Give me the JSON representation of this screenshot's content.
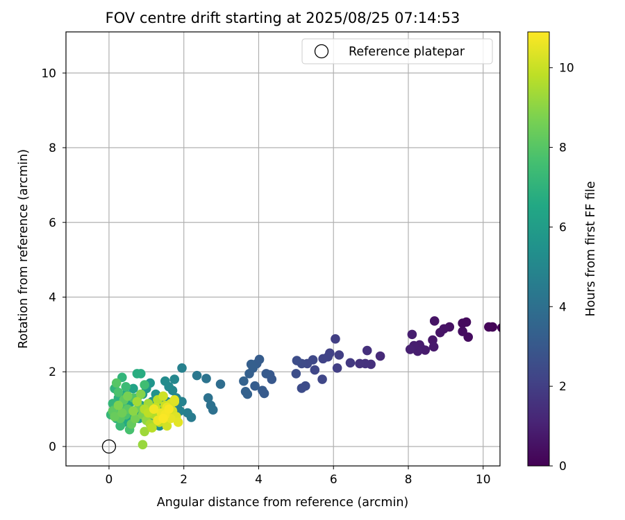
{
  "chart_data": {
    "type": "scatter",
    "title": "FOV centre drift starting at 2025/08/25 07:14:53",
    "xlabel": "Angular distance from reference (arcmin)",
    "ylabel": "Rotation from reference (arcmin)",
    "xlim": [
      -1.15,
      10.45
    ],
    "ylim": [
      -0.52,
      11.1
    ],
    "xticks": [
      0,
      2,
      4,
      6,
      8,
      10
    ],
    "yticks": [
      0,
      2,
      4,
      6,
      8,
      10
    ],
    "grid": true,
    "legend": {
      "position": "top-right",
      "entries": [
        "Reference platepar"
      ]
    },
    "reference_point": {
      "name": "Reference platepar",
      "x": 0,
      "y": 0
    },
    "colorbar": {
      "label": "Hours from first FF file",
      "colormap": "viridis",
      "range": [
        0,
        10.9
      ],
      "ticks": [
        0,
        2,
        4,
        6,
        8,
        10
      ]
    },
    "points": [
      [
        10.5,
        3.18,
        0.05
      ],
      [
        10.25,
        3.2,
        0.1
      ],
      [
        10.15,
        3.2,
        0.15
      ],
      [
        9.6,
        2.93,
        0.35
      ],
      [
        9.55,
        3.33,
        0.3
      ],
      [
        9.45,
        3.3,
        0.3
      ],
      [
        9.45,
        3.08,
        0.4
      ],
      [
        9.1,
        3.2,
        0.5
      ],
      [
        8.95,
        3.15,
        0.55
      ],
      [
        8.85,
        3.05,
        0.6
      ],
      [
        8.7,
        3.36,
        0.55
      ],
      [
        8.65,
        2.85,
        0.7
      ],
      [
        8.68,
        2.67,
        0.75
      ],
      [
        8.45,
        2.58,
        0.8
      ],
      [
        8.35,
        2.62,
        0.85
      ],
      [
        8.3,
        2.72,
        0.85
      ],
      [
        8.25,
        2.55,
        0.9
      ],
      [
        8.15,
        2.7,
        0.9
      ],
      [
        8.05,
        2.6,
        0.95
      ],
      [
        8.1,
        3.0,
        0.9
      ],
      [
        7.25,
        2.42,
        1.3
      ],
      [
        7.0,
        2.2,
        1.5
      ],
      [
        6.9,
        2.57,
        1.5
      ],
      [
        6.85,
        2.22,
        1.55
      ],
      [
        6.7,
        2.22,
        1.6
      ],
      [
        6.45,
        2.24,
        1.8
      ],
      [
        6.15,
        2.45,
        2.0
      ],
      [
        6.1,
        2.1,
        2.0
      ],
      [
        6.05,
        2.88,
        2.0
      ],
      [
        5.9,
        2.5,
        2.1
      ],
      [
        5.85,
        2.4,
        2.15
      ],
      [
        5.72,
        2.35,
        2.2
      ],
      [
        5.7,
        1.8,
        2.3
      ],
      [
        5.5,
        2.05,
        2.3
      ],
      [
        5.45,
        2.32,
        2.35
      ],
      [
        5.3,
        2.22,
        2.4
      ],
      [
        5.15,
        2.22,
        2.45
      ],
      [
        5.25,
        1.62,
        2.5
      ],
      [
        5.15,
        1.56,
        2.5
      ],
      [
        5.02,
        2.3,
        2.55
      ],
      [
        5.0,
        1.95,
        2.6
      ],
      [
        4.35,
        1.8,
        3.0
      ],
      [
        4.3,
        1.92,
        3.0
      ],
      [
        4.2,
        1.95,
        3.05
      ],
      [
        4.15,
        1.42,
        3.1
      ],
      [
        4.1,
        1.5,
        3.1
      ],
      [
        4.02,
        2.33,
        3.15
      ],
      [
        3.95,
        2.22,
        3.2
      ],
      [
        3.9,
        1.62,
        3.2
      ],
      [
        3.85,
        2.1,
        3.25
      ],
      [
        3.8,
        2.2,
        3.25
      ],
      [
        3.75,
        1.95,
        3.3
      ],
      [
        3.7,
        1.4,
        3.35
      ],
      [
        3.65,
        1.47,
        3.35
      ],
      [
        3.6,
        1.75,
        3.4
      ],
      [
        2.98,
        1.67,
        3.9
      ],
      [
        2.78,
        0.98,
        4.0
      ],
      [
        2.72,
        1.1,
        4.05
      ],
      [
        2.65,
        1.3,
        4.1
      ],
      [
        2.6,
        1.82,
        4.15
      ],
      [
        2.35,
        1.9,
        4.3
      ],
      [
        2.2,
        0.78,
        4.5
      ],
      [
        2.1,
        0.9,
        4.6
      ],
      [
        1.95,
        2.1,
        4.7
      ],
      [
        1.95,
        1.2,
        4.75
      ],
      [
        1.9,
        0.95,
        4.8
      ],
      [
        1.85,
        1.15,
        4.85
      ],
      [
        1.8,
        1.3,
        4.9
      ],
      [
        1.75,
        1.8,
        5.0
      ],
      [
        1.7,
        1.5,
        5.0
      ],
      [
        1.6,
        1.6,
        5.1
      ],
      [
        1.55,
        1.2,
        5.1
      ],
      [
        1.5,
        1.75,
        5.2
      ],
      [
        1.45,
        0.95,
        5.3
      ],
      [
        1.4,
        1.3,
        5.3
      ],
      [
        1.35,
        0.55,
        5.4
      ],
      [
        1.3,
        1.05,
        5.4
      ],
      [
        1.25,
        1.4,
        5.5
      ],
      [
        1.2,
        0.7,
        5.55
      ],
      [
        1.15,
        1.2,
        5.6
      ],
      [
        1.1,
        1.7,
        5.65
      ],
      [
        1.0,
        1.55,
        5.8
      ],
      [
        0.95,
        0.9,
        5.85
      ],
      [
        0.9,
        1.4,
        5.9
      ],
      [
        0.85,
        1.1,
        6.0
      ],
      [
        0.8,
        0.75,
        6.05
      ],
      [
        0.75,
        1.3,
        6.1
      ],
      [
        0.7,
        0.95,
        6.2
      ],
      [
        0.65,
        1.55,
        6.25
      ],
      [
        0.6,
        1.2,
        6.35
      ],
      [
        0.55,
        0.8,
        6.4
      ],
      [
        0.5,
        1.05,
        6.5
      ],
      [
        0.45,
        1.4,
        6.55
      ],
      [
        0.4,
        0.65,
        6.6
      ],
      [
        0.85,
        1.95,
        6.7
      ],
      [
        0.75,
        1.95,
        6.75
      ],
      [
        0.3,
        1.0,
        6.8
      ],
      [
        0.25,
        1.3,
        6.9
      ],
      [
        0.2,
        0.75,
        7.0
      ],
      [
        0.15,
        1.55,
        7.05
      ],
      [
        0.35,
        1.85,
        7.1
      ],
      [
        0.1,
        1.15,
        7.15
      ],
      [
        0.05,
        0.85,
        7.2
      ],
      [
        0.3,
        0.55,
        7.3
      ],
      [
        0.45,
        1.6,
        7.4
      ],
      [
        0.6,
        0.95,
        7.45
      ],
      [
        0.95,
        1.65,
        7.5
      ],
      [
        0.15,
        1.0,
        7.55
      ],
      [
        0.35,
        1.15,
        7.6
      ],
      [
        0.55,
        0.45,
        7.7
      ],
      [
        0.25,
        1.45,
        7.75
      ],
      [
        0.45,
        0.85,
        7.8
      ],
      [
        0.65,
        1.3,
        7.9
      ],
      [
        0.2,
        1.7,
        8.0
      ],
      [
        0.3,
        0.75,
        8.05
      ],
      [
        0.5,
        1.0,
        8.1
      ],
      [
        0.1,
        0.95,
        8.15
      ],
      [
        0.4,
        1.25,
        8.2
      ],
      [
        0.6,
        0.6,
        8.3
      ],
      [
        0.15,
        0.8,
        8.35
      ],
      [
        0.8,
        1.05,
        8.4
      ],
      [
        0.35,
        0.9,
        8.5
      ],
      [
        0.7,
        0.75,
        8.6
      ],
      [
        0.5,
        1.35,
        8.65
      ],
      [
        0.9,
        0.85,
        8.75
      ],
      [
        0.25,
        1.1,
        8.8
      ],
      [
        0.85,
        1.4,
        8.9
      ],
      [
        0.65,
        0.95,
        9.0
      ],
      [
        1.0,
        0.7,
        9.1
      ],
      [
        0.9,
        0.05,
        9.2
      ],
      [
        0.95,
        0.4,
        9.3
      ],
      [
        1.05,
        1.15,
        9.35
      ],
      [
        0.75,
        1.2,
        9.4
      ],
      [
        1.1,
        0.6,
        9.5
      ],
      [
        1.2,
        0.85,
        9.6
      ],
      [
        0.95,
        1.0,
        9.65
      ],
      [
        1.3,
        1.25,
        9.7
      ],
      [
        1.15,
        0.5,
        9.75
      ],
      [
        1.05,
        0.9,
        9.8
      ],
      [
        1.4,
        0.8,
        9.85
      ],
      [
        1.25,
        1.05,
        9.9
      ],
      [
        1.35,
        0.65,
        9.95
      ],
      [
        1.5,
        1.1,
        10.0
      ],
      [
        1.6,
        0.9,
        10.05
      ],
      [
        1.45,
        1.35,
        10.1
      ],
      [
        1.55,
        0.55,
        10.15
      ],
      [
        1.65,
        1.15,
        10.2
      ],
      [
        1.7,
        0.95,
        10.25
      ],
      [
        1.75,
        1.2,
        10.3
      ],
      [
        1.8,
        0.8,
        10.35
      ],
      [
        1.75,
        1.25,
        10.4
      ],
      [
        1.85,
        0.65,
        10.45
      ],
      [
        1.65,
        0.75,
        10.5
      ],
      [
        1.55,
        1.05,
        10.55
      ],
      [
        1.4,
        0.9,
        10.6
      ],
      [
        1.3,
        0.7,
        10.65
      ],
      [
        1.2,
        1.0,
        10.7
      ],
      [
        1.5,
        0.85,
        10.75
      ],
      [
        1.6,
        1.0,
        10.8
      ],
      [
        1.45,
        0.75,
        10.85
      ]
    ]
  }
}
